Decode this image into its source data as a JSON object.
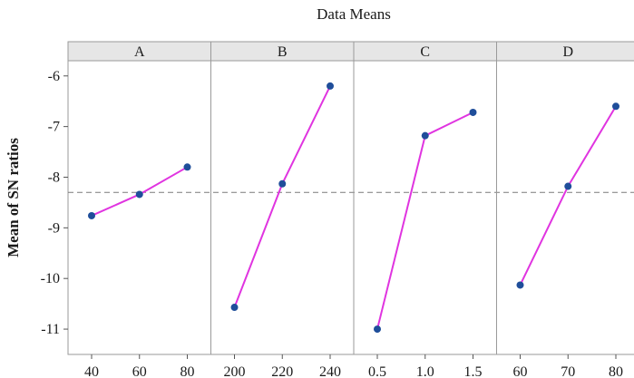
{
  "chart_data": {
    "type": "line",
    "subtitle": "Data Means",
    "ylabel": "Mean of SN ratios",
    "ylim": [
      -11.5,
      -5.7
    ],
    "yticks": [
      -11,
      -10,
      -9,
      -8,
      -7,
      -6
    ],
    "reference_line": -8.3,
    "grid": false,
    "colors": {
      "line": "#e034e0",
      "marker": "#1f4e9a",
      "reference": "#7a7a7a",
      "header": "#e6e6e6"
    },
    "panels": [
      {
        "title": "A",
        "x": [
          "40",
          "60",
          "80"
        ],
        "values": [
          -8.76,
          -8.34,
          -7.8
        ]
      },
      {
        "title": "B",
        "x": [
          "200",
          "220",
          "240"
        ],
        "values": [
          -10.57,
          -8.13,
          -6.2
        ]
      },
      {
        "title": "C",
        "x": [
          "0.5",
          "1.0",
          "1.5"
        ],
        "values": [
          -11.0,
          -7.18,
          -6.72
        ]
      },
      {
        "title": "D",
        "x": [
          "60",
          "70",
          "80"
        ],
        "values": [
          -10.13,
          -8.18,
          -6.6
        ]
      }
    ]
  }
}
